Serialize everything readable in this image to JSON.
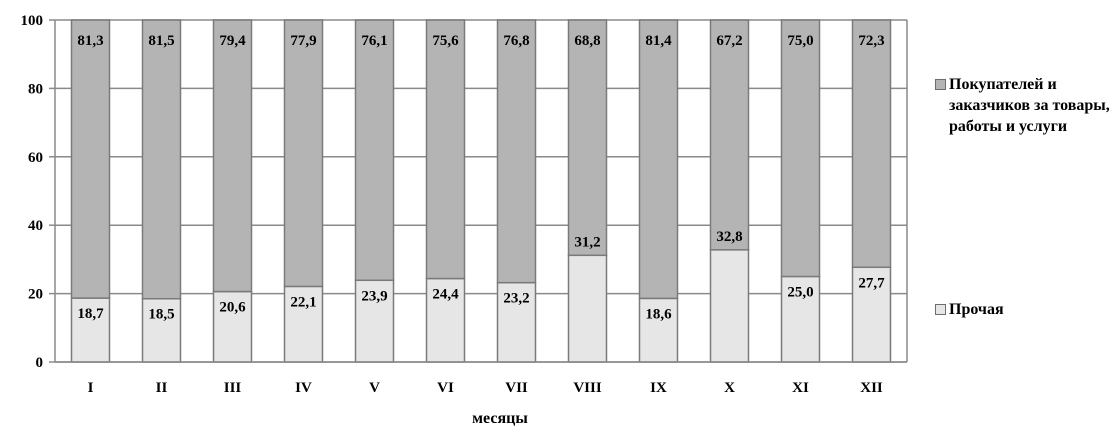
{
  "chart_data": {
    "type": "bar",
    "stacked": true,
    "percent": true,
    "categories": [
      "I",
      "II",
      "III",
      "IV",
      "V",
      "VI",
      "VII",
      "VIII",
      "IX",
      "X",
      "XI",
      "XII"
    ],
    "series": [
      {
        "name": "Прочая",
        "values": [
          18.7,
          18.5,
          20.6,
          22.1,
          23.9,
          24.4,
          23.2,
          31.2,
          18.6,
          32.8,
          25.0,
          27.7
        ],
        "labels": [
          "18,7",
          "18,5",
          "20,6",
          "22,1",
          "23,9",
          "24,4",
          "23,2",
          "31,2",
          "18,6",
          "32,8",
          "25,0",
          "27,7"
        ],
        "color": "#e6e6e6"
      },
      {
        "name": "Покупателей и заказчиков за товары, работы и услуги",
        "values": [
          81.3,
          81.5,
          79.4,
          77.9,
          76.1,
          75.6,
          76.8,
          68.8,
          81.4,
          67.2,
          75.0,
          72.3
        ],
        "labels": [
          "81,3",
          "81,5",
          "79,4",
          "77,9",
          "76,1",
          "75,6",
          "76,8",
          "68,8",
          "81,4",
          "67,2",
          "75,0",
          "72,3"
        ],
        "color": "#b4b4b4"
      }
    ],
    "xlabel": "месяцы",
    "ylabel": "",
    "ylim": [
      0,
      100
    ],
    "yticks": [
      "0",
      "20",
      "40",
      "60",
      "80",
      "100"
    ],
    "grid": true,
    "legend_position": "right"
  },
  "legend": {
    "buyers": "Покупателей и заказчиков за товары, работы и услуги",
    "other": "Прочая"
  },
  "colors": {
    "bottom": "#e6e6e6",
    "top": "#b4b4b4",
    "border": "#7a7a7a"
  }
}
